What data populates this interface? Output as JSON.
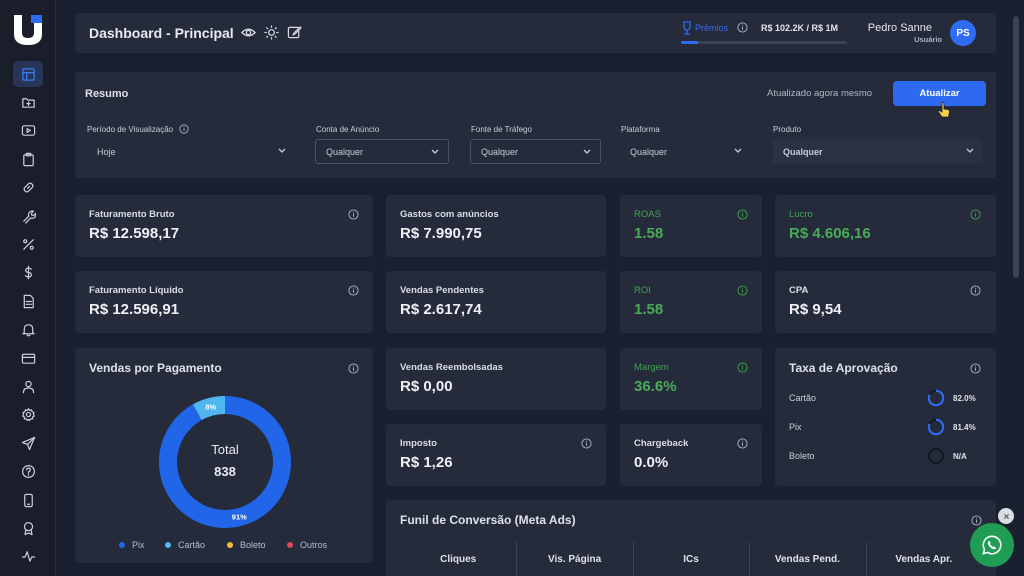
{
  "app": {
    "logo_icon": "brand-u-logo-icon",
    "accent": "#2f6cf5",
    "positive": "#49ac57"
  },
  "sidebar": {
    "items": [
      {
        "icon": "dashboard-icon",
        "active": true
      },
      {
        "icon": "folder-icon"
      },
      {
        "icon": "video-icon"
      },
      {
        "icon": "clipboard-icon"
      },
      {
        "icon": "link-icon"
      },
      {
        "icon": "wrench-icon"
      },
      {
        "icon": "percent-icon"
      },
      {
        "icon": "dollar-icon"
      },
      {
        "icon": "document-icon"
      },
      {
        "icon": "bell-icon"
      },
      {
        "icon": "credit-card-icon"
      },
      {
        "icon": "user-icon"
      },
      {
        "icon": "settings-icon"
      },
      {
        "icon": "send-icon"
      },
      {
        "icon": "help-icon"
      },
      {
        "icon": "mobile-icon"
      },
      {
        "icon": "award-icon"
      },
      {
        "icon": "activity-icon"
      }
    ]
  },
  "header": {
    "title": "Dashboard - Principal",
    "premios_label": "Prêmios",
    "premios_value": "R$ 102.2K / R$ 1M",
    "premios_progress": 0.102,
    "user_name": "Pedro Sanne",
    "user_role": "Usuário",
    "avatar_initials": "PS"
  },
  "resumo": {
    "title": "Resumo",
    "updated_text": "Atualizado agora mesmo",
    "update_button": "Atualizar",
    "filters": [
      {
        "label": "Período de Visualização",
        "value": "Hoje"
      },
      {
        "label": "Conta de Anúncio",
        "value": "Qualquer"
      },
      {
        "label": "Fonte de Tráfego",
        "value": "Qualquer"
      },
      {
        "label": "Plataforma",
        "value": "Qualquer"
      },
      {
        "label": "Produto",
        "value": "Qualquer"
      }
    ]
  },
  "metrics": {
    "faturamento_bruto": {
      "label": "Faturamento Bruto",
      "value": "R$ 12.598,17"
    },
    "gastos_anuncios": {
      "label": "Gastos com anúncios",
      "value": "R$ 7.990,75"
    },
    "roas": {
      "label": "ROAS",
      "value": "1.58"
    },
    "lucro": {
      "label": "Lucro",
      "value": "R$ 4.606,16"
    },
    "faturamento_liquido": {
      "label": "Faturamento Líquido",
      "value": "R$ 12.596,91"
    },
    "vendas_pendentes": {
      "label": "Vendas Pendentes",
      "value": "R$ 2.617,74"
    },
    "roi": {
      "label": "ROI",
      "value": "1.58"
    },
    "cpa": {
      "label": "CPA",
      "value": "R$ 9,54"
    },
    "vendas_reembolsadas": {
      "label": "Vendas Reembolsadas",
      "value": "R$ 0,00"
    },
    "margem": {
      "label": "Margem",
      "value": "36.6%"
    },
    "imposto": {
      "label": "Imposto",
      "value": "R$ 1,26"
    },
    "chargeback": {
      "label": "Chargeback",
      "value": "0.0%"
    }
  },
  "vendas_pagamento": {
    "title": "Vendas por Pagamento",
    "total_label": "Total",
    "total_value": "838"
  },
  "chart_data": {
    "type": "pie",
    "categories": [
      "Pix",
      "Cartão",
      "Boleto",
      "Outros"
    ],
    "values": [
      91,
      8,
      0,
      0
    ],
    "slice_labels": [
      "91%",
      "8%",
      "",
      ""
    ],
    "colors": [
      "#2166e8",
      "#4fb6ef",
      "#f2b93b",
      "#e0475b"
    ],
    "legend_position": "bottom"
  },
  "taxa_aprovacao": {
    "title": "Taxa de Aprovação",
    "items": [
      {
        "label": "Cartão",
        "value": "82.0%",
        "rate": 0.82
      },
      {
        "label": "Pix",
        "value": "81.4%",
        "rate": 0.814
      },
      {
        "label": "Boleto",
        "value": "N/A",
        "rate": 0
      }
    ]
  },
  "funil": {
    "title": "Funil de Conversão (Meta Ads)",
    "columns": [
      "Cliques",
      "Vis. Página",
      "ICs",
      "Vendas Pend.",
      "Vendas Apr."
    ]
  },
  "whatsapp": {
    "icon": "whatsapp-icon"
  }
}
